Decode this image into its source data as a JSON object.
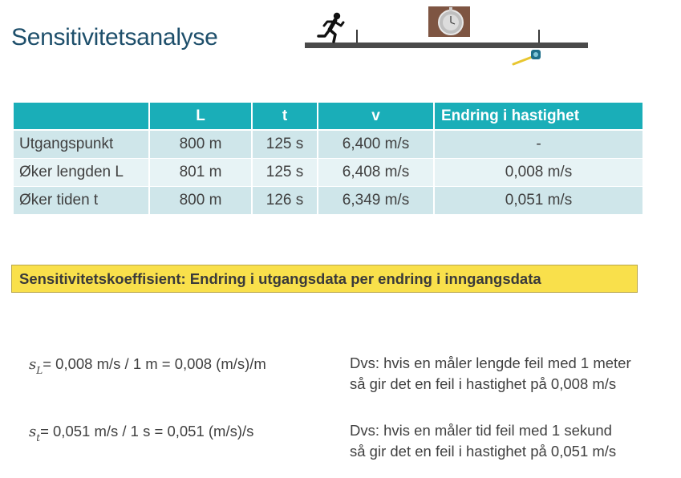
{
  "title": "Sensitivitetsanalyse",
  "illustration": {
    "runner_icon": "running-man-icon",
    "stopwatch_icon": "stopwatch-icon",
    "tape_icon": "measuring-tape-icon",
    "track_color": "#4a4a4a"
  },
  "table": {
    "headers": [
      "",
      "L",
      "t",
      "v",
      "Endring i hastighet"
    ],
    "rows": [
      [
        "Utgangspunkt",
        "800 m",
        "125 s",
        "6,400 m/s",
        "-"
      ],
      [
        "Øker lengden L",
        "801 m",
        "125 s",
        "6,408 m/s",
        "0,008 m/s"
      ],
      [
        "Øker tiden t",
        "800 m",
        "126 s",
        "6,349 m/s",
        "0,051 m/s"
      ]
    ],
    "header_color": "#1aaeb8"
  },
  "callout": {
    "text": "Sensitivitetskoeffisient: Endring i utgangsdata per endring i inngangsdata",
    "color": "#f9e04b"
  },
  "formulas": [
    {
      "symbol": "s",
      "subscript": "L",
      "expression": "= 0,008 m/s / 1 m = 0,008 (m/s)/m",
      "note_line1": "Dvs: hvis en måler lengde feil med 1 meter",
      "note_line2": "så gir det en feil i hastighet på 0,008 m/s"
    },
    {
      "symbol": "s",
      "subscript": "t",
      "expression": "= 0,051 m/s / 1 s = 0,051 (m/s)/s",
      "note_line1": "Dvs: hvis en måler tid feil med 1 sekund",
      "note_line2": "så gir det en feil i hastighet på 0,051 m/s"
    }
  ]
}
